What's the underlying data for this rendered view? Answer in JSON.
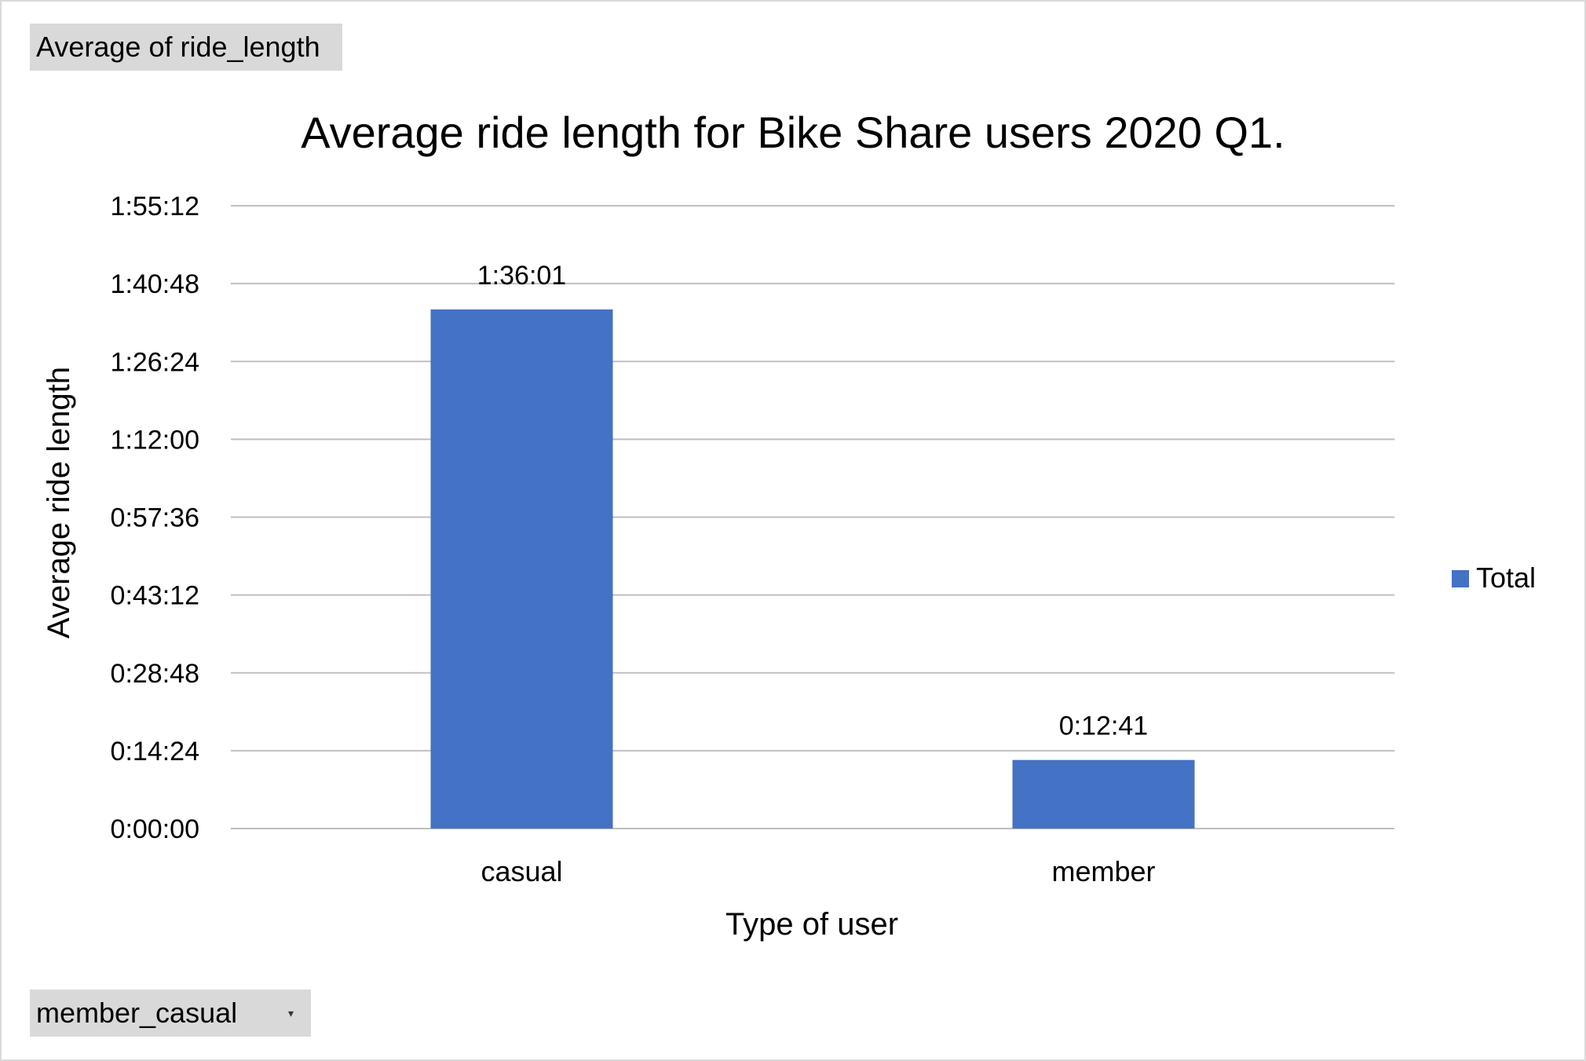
{
  "pivot": {
    "value_field_label": "Average of ride_length",
    "axis_field_label": "member_casual",
    "axis_field_icon": "dropdown-arrow-icon"
  },
  "chart_data": {
    "type": "bar",
    "title": "Average ride length for Bike Share users 2020 Q1.",
    "xlabel": "Type of user",
    "ylabel": "Average ride length",
    "categories": [
      "casual",
      "member"
    ],
    "series": [
      {
        "name": "Total",
        "values": [
          5761,
          761
        ],
        "value_labels": [
          "1:36:01",
          "0:12:41"
        ],
        "color": "#4472c4"
      }
    ],
    "yticks": [
      0,
      864,
      1728,
      2592,
      3456,
      4320,
      5184,
      6048,
      6912
    ],
    "ytick_labels": [
      "0:00:00",
      "0:14:24",
      "0:28:48",
      "0:43:12",
      "0:57:36",
      "1:12:00",
      "1:26:24",
      "1:40:48",
      "1:55:12"
    ],
    "ylim": [
      0,
      6912
    ],
    "y_unit": "seconds",
    "grid": true,
    "legend": "right",
    "gridline_color": "#bfbfbf"
  }
}
